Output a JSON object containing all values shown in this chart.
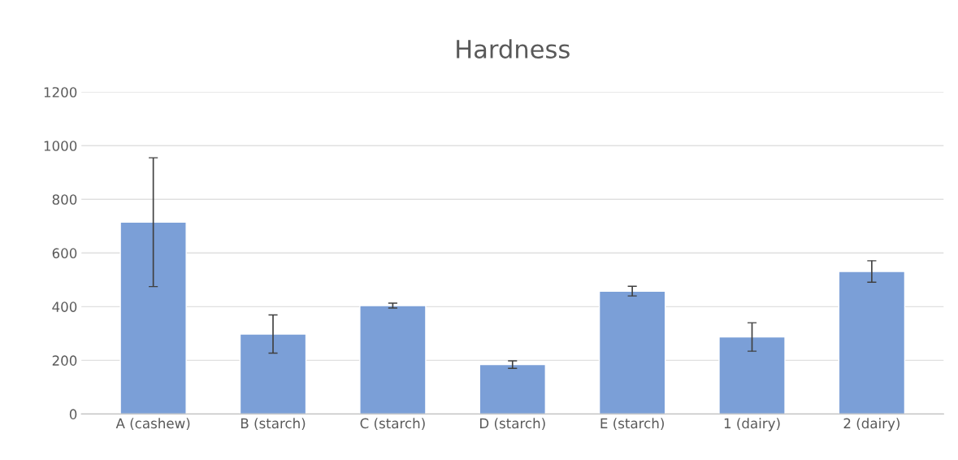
{
  "chart_data": {
    "type": "bar",
    "title": "Hardness",
    "categories": [
      "A (cashew)",
      "B (starch)",
      "C (starch)",
      "D (starch)",
      "E (starch)",
      "1 (dairy)",
      "2 (dairy)"
    ],
    "values": [
      715,
      298,
      404,
      184,
      458,
      287,
      531
    ],
    "errors": [
      240,
      71,
      9,
      14,
      18,
      53,
      40
    ],
    "color": "#7b9fd7",
    "ylim": [
      0,
      1200
    ],
    "yticks": [
      0,
      200,
      400,
      600,
      800,
      1000,
      1200
    ],
    "grid": "y",
    "legend": false
  }
}
